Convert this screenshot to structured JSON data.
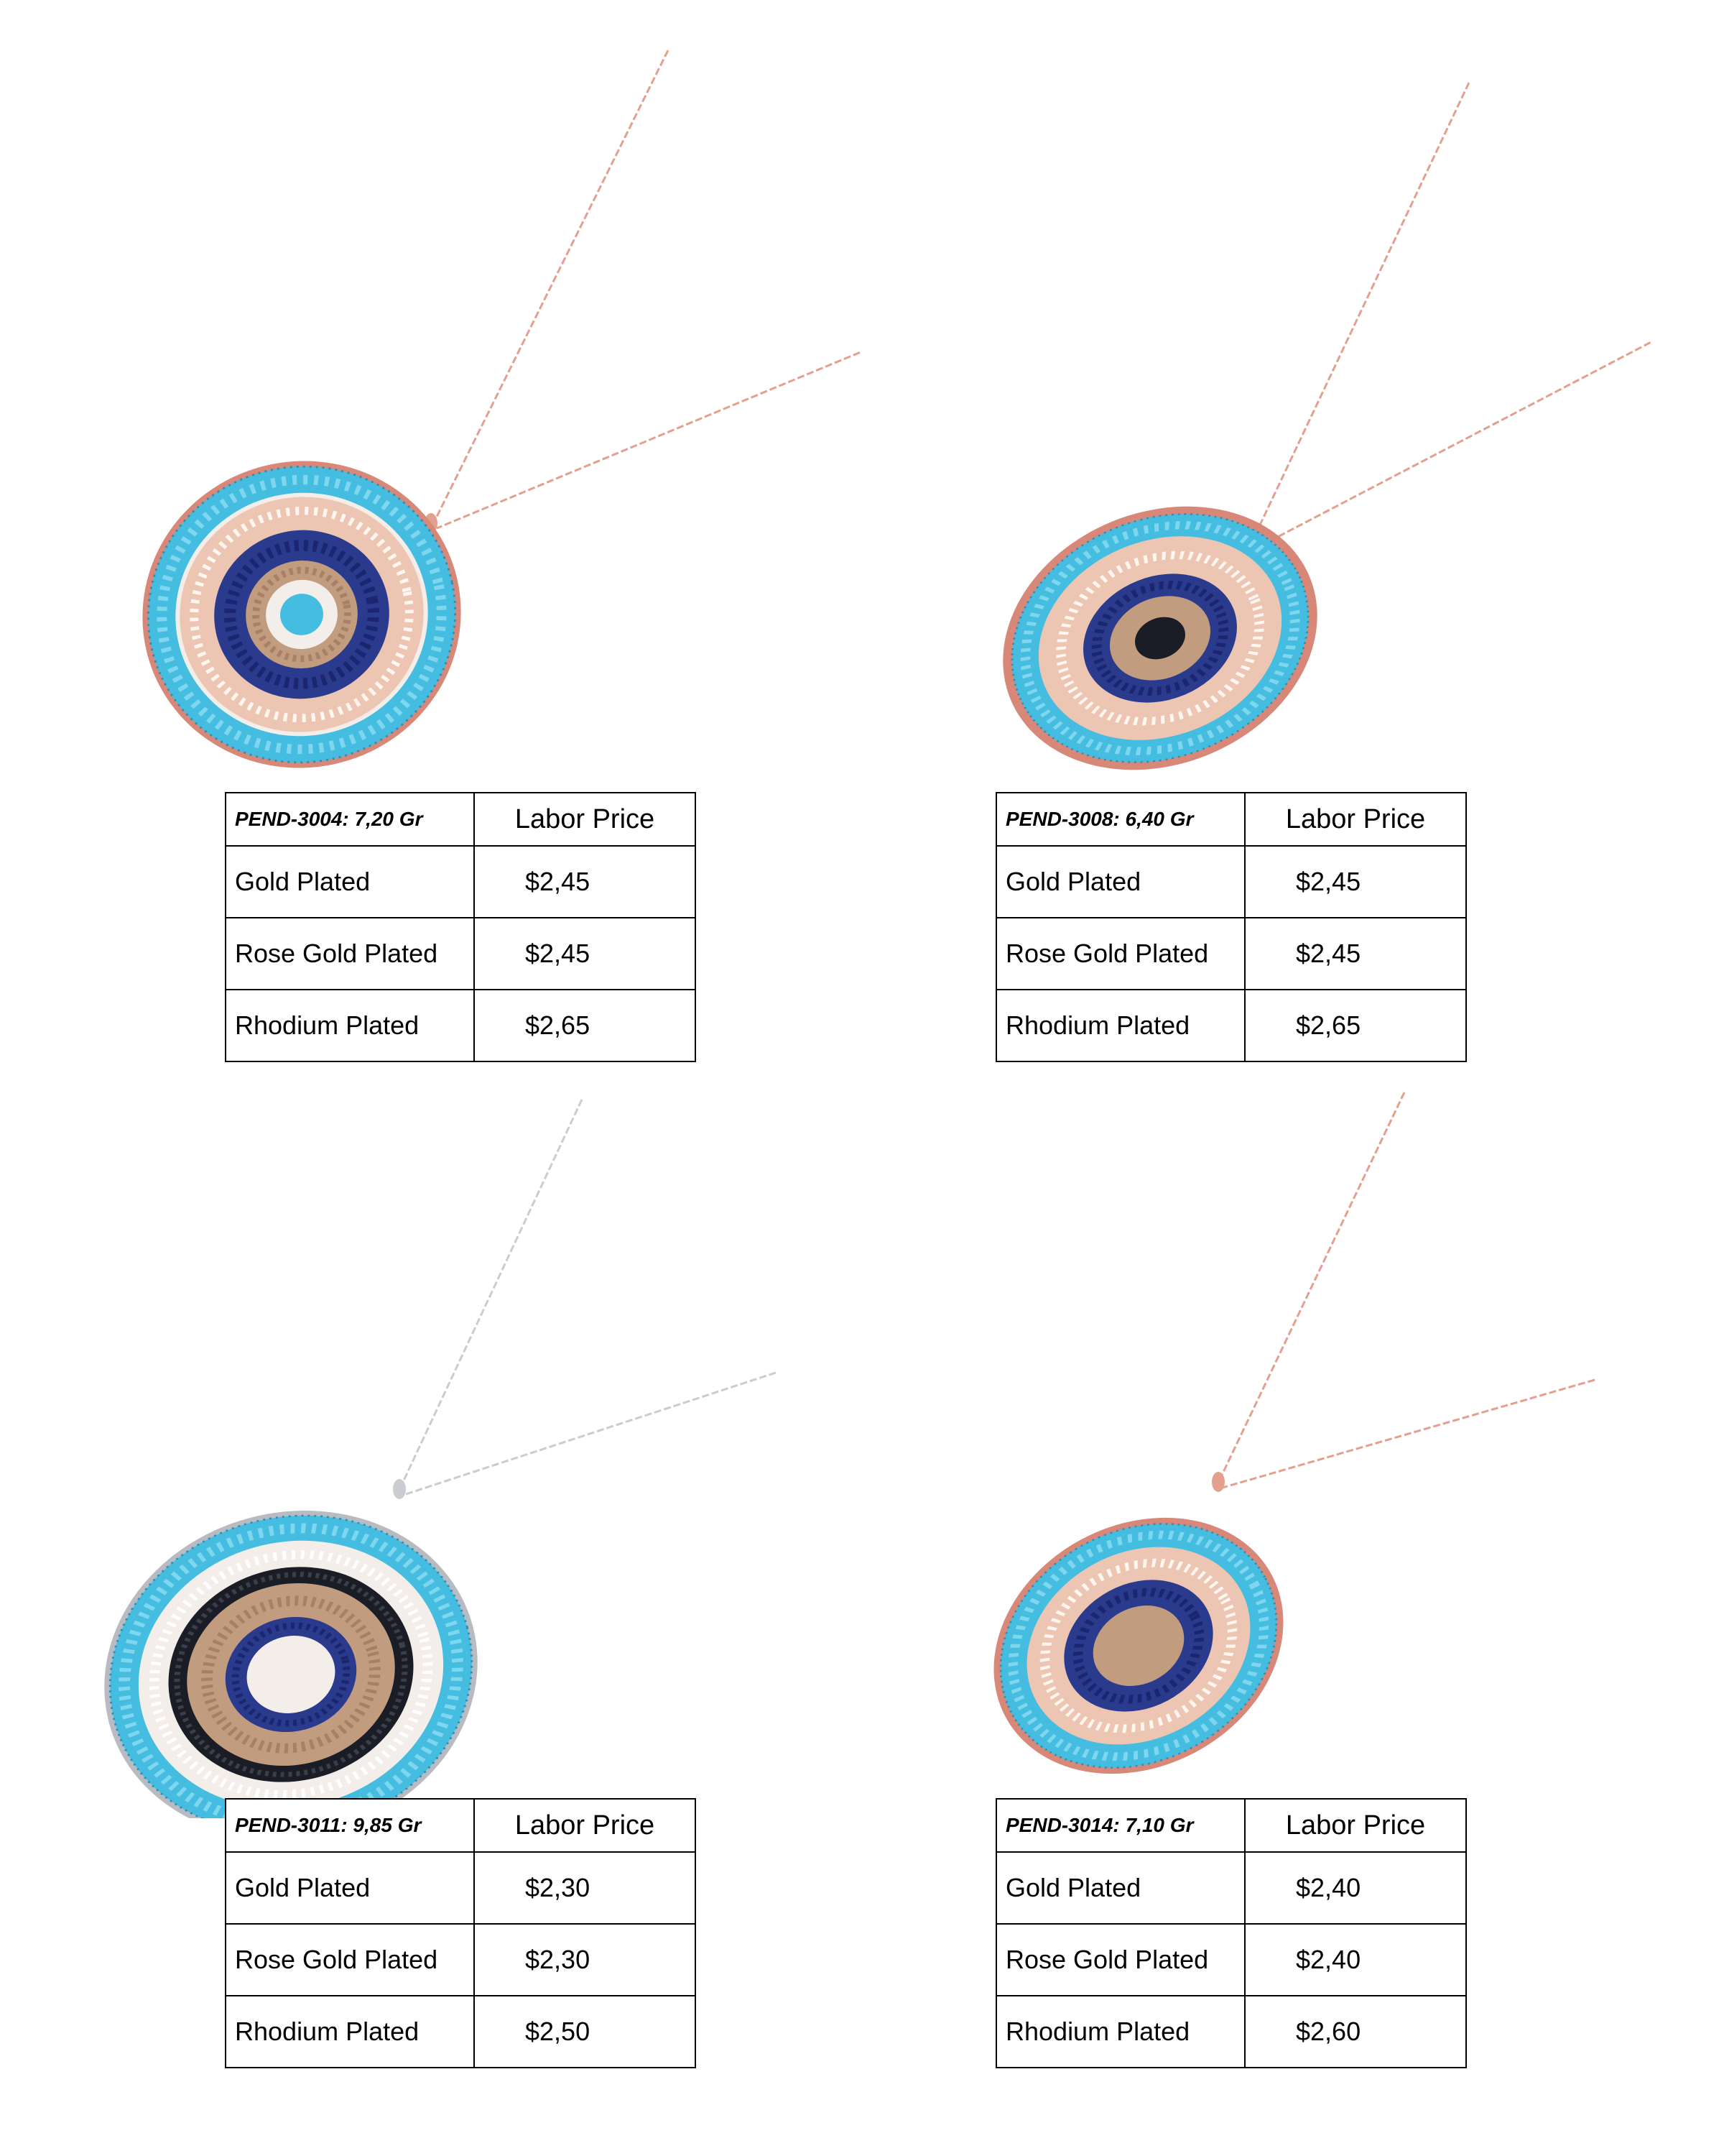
{
  "products": [
    {
      "code_weight": "PEND-3004: 7,20 Gr",
      "header": "Labor Price",
      "rows": [
        {
          "finish": "Gold Plated",
          "price": "$2,45"
        },
        {
          "finish": "Rose Gold Plated",
          "price": "$2,45"
        },
        {
          "finish": "Rhodium Plated",
          "price": "$2,65"
        }
      ]
    },
    {
      "code_weight": "PEND-3008: 6,40 Gr",
      "header": "Labor Price",
      "rows": [
        {
          "finish": "Gold Plated",
          "price": "$2,45"
        },
        {
          "finish": "Rose Gold Plated",
          "price": "$2,45"
        },
        {
          "finish": "Rhodium Plated",
          "price": "$2,65"
        }
      ]
    },
    {
      "code_weight": "PEND-3011: 9,85 Gr",
      "header": "Labor Price",
      "rows": [
        {
          "finish": "Gold Plated",
          "price": "$2,30"
        },
        {
          "finish": "Rose Gold Plated",
          "price": "$2,30"
        },
        {
          "finish": "Rhodium Plated",
          "price": "$2,50"
        }
      ]
    },
    {
      "code_weight": "PEND-3014: 7,10 Gr",
      "header": "Labor Price",
      "rows": [
        {
          "finish": "Gold Plated",
          "price": "$2,40"
        },
        {
          "finish": "Rose Gold Plated",
          "price": "$2,40"
        },
        {
          "finish": "Rhodium Plated",
          "price": "$2,60"
        }
      ]
    }
  ],
  "colors": {
    "rose_metal": "#e3a08f",
    "silver_metal": "#c9cdd2",
    "turquoise": "#45bde0",
    "navy": "#2a3a8c",
    "champagne": "#c29c7e",
    "clear": "#f3eeea",
    "black": "#1b1d26"
  }
}
